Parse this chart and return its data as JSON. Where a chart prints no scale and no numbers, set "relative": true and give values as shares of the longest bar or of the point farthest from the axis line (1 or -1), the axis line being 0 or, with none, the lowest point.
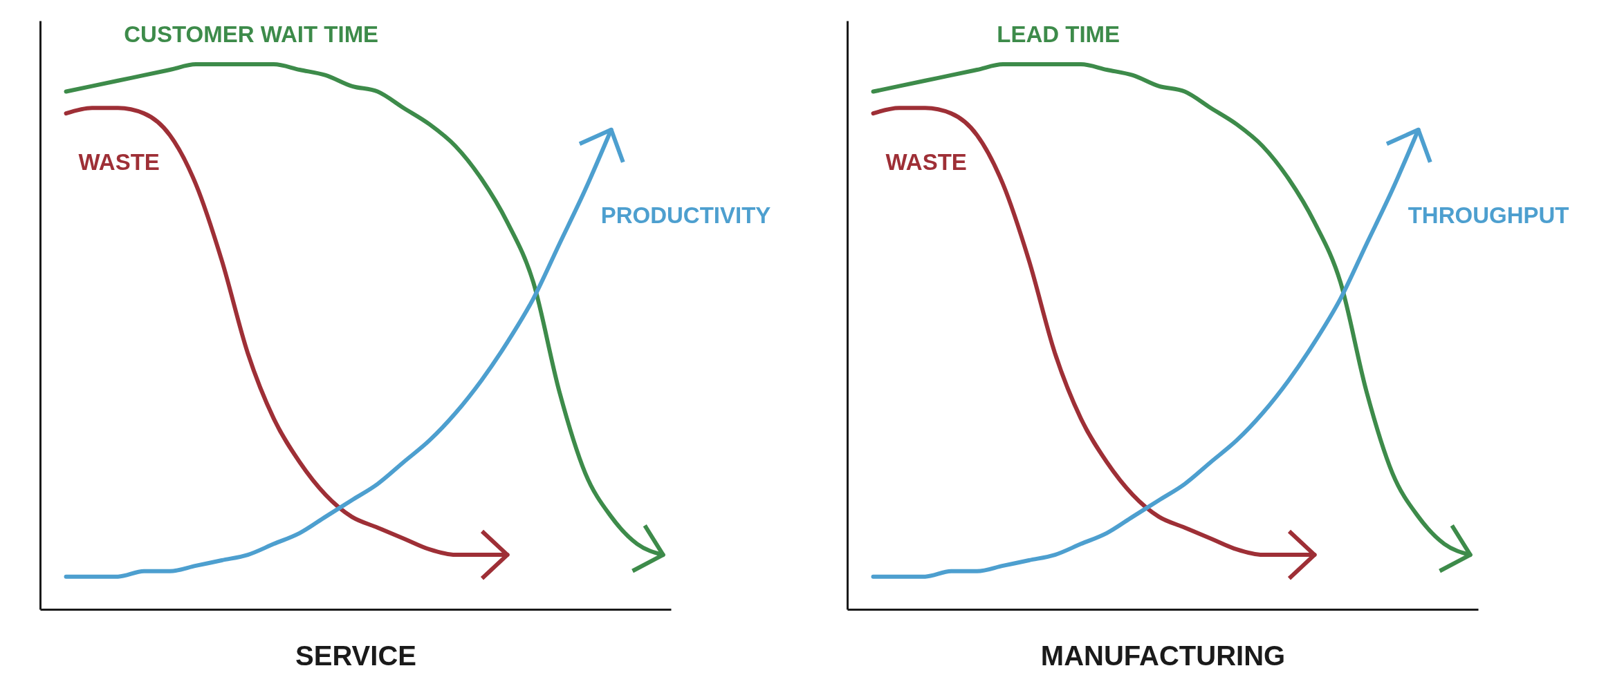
{
  "chart_data": [
    {
      "type": "line",
      "relative": true,
      "xlabel": "SERVICE",
      "categories": [
        null,
        null,
        null,
        null,
        null,
        null,
        null,
        null,
        null,
        null,
        null,
        null,
        null,
        null,
        null,
        null,
        null,
        null,
        null,
        null,
        null,
        null,
        null,
        null
      ],
      "series": [
        {
          "name": "CUSTOMER WAIT TIME",
          "color": "#3d8b4a",
          "values": [
            0.95,
            0.96,
            0.97,
            0.98,
            0.99,
            1,
            1,
            1,
            1,
            0.99,
            0.98,
            0.96,
            0.95,
            0.92,
            0.89,
            0.85,
            0.79,
            0.71,
            0.6,
            0.4,
            0.25,
            0.17,
            0.12,
            0.1
          ]
        },
        {
          "name": "WASTE",
          "color": "#9e2f36",
          "values": [
            0.91,
            0.92,
            0.92,
            0.91,
            0.87,
            0.78,
            0.64,
            0.47,
            0.35,
            0.27,
            0.21,
            0.17,
            0.15,
            0.13,
            0.11,
            0.1,
            0.1,
            0.1,
            null,
            null,
            null,
            null,
            null,
            null
          ]
        },
        {
          "name": "PRODUCTIVITY",
          "color": "#4d9fcf",
          "values": [
            0.06,
            0.06,
            0.06,
            0.07,
            0.07,
            0.08,
            0.09,
            0.1,
            0.12,
            0.14,
            0.17,
            0.2,
            0.23,
            0.27,
            0.31,
            0.36,
            0.42,
            0.49,
            0.57,
            0.67,
            0.77,
            0.88,
            null,
            null
          ]
        }
      ]
    },
    {
      "type": "line",
      "relative": true,
      "xlabel": "MANUFACTURING",
      "categories": [
        null,
        null,
        null,
        null,
        null,
        null,
        null,
        null,
        null,
        null,
        null,
        null,
        null,
        null,
        null,
        null,
        null,
        null,
        null,
        null,
        null,
        null,
        null,
        null
      ],
      "series": [
        {
          "name": "LEAD TIME",
          "color": "#3d8b4a",
          "values": [
            0.95,
            0.96,
            0.97,
            0.98,
            0.99,
            1,
            1,
            1,
            1,
            0.99,
            0.98,
            0.96,
            0.95,
            0.92,
            0.89,
            0.85,
            0.79,
            0.71,
            0.6,
            0.4,
            0.25,
            0.17,
            0.12,
            0.1
          ]
        },
        {
          "name": "WASTE",
          "color": "#9e2f36",
          "values": [
            0.91,
            0.92,
            0.92,
            0.91,
            0.87,
            0.78,
            0.64,
            0.47,
            0.35,
            0.27,
            0.21,
            0.17,
            0.15,
            0.13,
            0.11,
            0.1,
            0.1,
            0.1,
            null,
            null,
            null,
            null,
            null,
            null
          ]
        },
        {
          "name": "THROUGHPUT",
          "color": "#4d9fcf",
          "values": [
            0.06,
            0.06,
            0.06,
            0.07,
            0.07,
            0.08,
            0.09,
            0.1,
            0.12,
            0.14,
            0.17,
            0.2,
            0.23,
            0.27,
            0.31,
            0.36,
            0.42,
            0.49,
            0.57,
            0.67,
            0.77,
            0.88,
            null,
            null
          ]
        }
      ]
    }
  ]
}
